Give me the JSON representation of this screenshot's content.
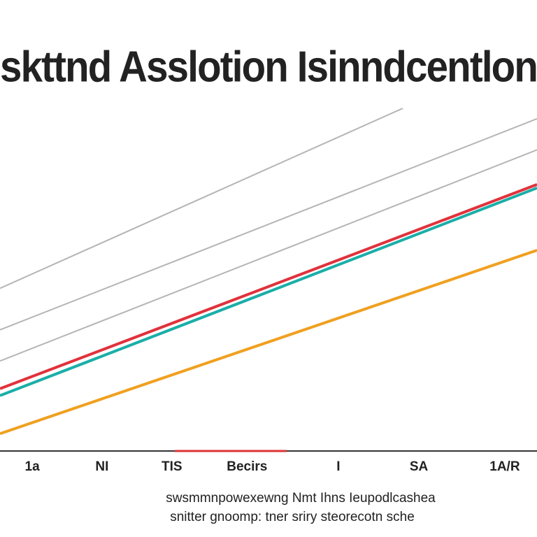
{
  "chart_data": {
    "type": "line",
    "title": "skttnd Asslotion Isinndcentlon",
    "annotations": [
      "swsmmnpowexewng Nmt Ihns Ieupodlcashea",
      "snitter gnoomp: tner sriry steorecotn sche"
    ],
    "xlim": [
      0,
      100
    ],
    "ylim": [
      0,
      100
    ],
    "xticks": [
      {
        "value": 6,
        "label": "1a"
      },
      {
        "value": 19,
        "label": "NI"
      },
      {
        "value": 32,
        "label": "TIS"
      },
      {
        "value": 46,
        "label": "Becirs"
      },
      {
        "value": 63,
        "label": "I"
      },
      {
        "value": 78,
        "label": "SA"
      },
      {
        "value": 94,
        "label": "1A/R"
      }
    ],
    "series": [
      {
        "color": "#b5b5b5",
        "x": [
          0,
          75
        ],
        "values": [
          47,
          99
        ]
      },
      {
        "color": "#b5b5b5",
        "x": [
          0,
          100
        ],
        "values": [
          35,
          96
        ]
      },
      {
        "color": "#b5b5b5",
        "x": [
          0,
          100
        ],
        "values": [
          26,
          87
        ]
      },
      {
        "color": "#e0323c",
        "x": [
          0,
          100
        ],
        "values": [
          18,
          77
        ]
      },
      {
        "color": "#1aaea8",
        "x": [
          0,
          100
        ],
        "values": [
          16,
          76
        ]
      },
      {
        "color": "#f0a020",
        "x": [
          0,
          100
        ],
        "values": [
          5,
          58
        ]
      }
    ]
  }
}
